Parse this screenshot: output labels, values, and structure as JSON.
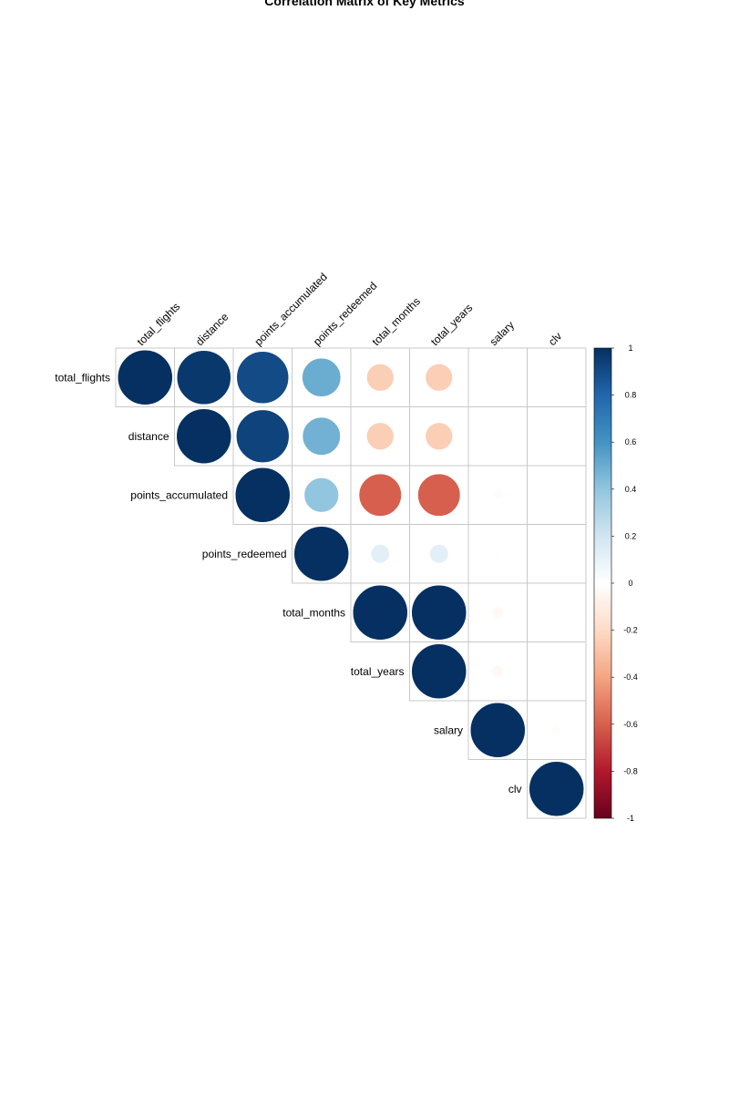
{
  "chart_data": {
    "type": "heatmap",
    "subtype": "correlation-matrix-upper-circle",
    "title": "Correlation Matrix of Key Metrics",
    "variables": [
      "total_flights",
      "distance",
      "points_accumulated",
      "points_redeemed",
      "total_months",
      "total_years",
      "salary",
      "clv"
    ],
    "matrix": [
      [
        1.0,
        0.97,
        0.9,
        0.5,
        -0.25,
        -0.25,
        0.0,
        0.0
      ],
      [
        0.97,
        1.0,
        0.93,
        0.48,
        -0.25,
        -0.25,
        0.0,
        0.0
      ],
      [
        0.9,
        0.93,
        1.0,
        0.4,
        -0.6,
        -0.6,
        -0.02,
        0.0
      ],
      [
        0.5,
        0.48,
        0.4,
        1.0,
        0.12,
        0.12,
        0.01,
        0.0
      ],
      [
        -0.25,
        -0.25,
        -0.6,
        0.12,
        1.0,
        1.0,
        -0.04,
        0.0
      ],
      [
        -0.25,
        -0.25,
        -0.6,
        0.12,
        1.0,
        1.0,
        -0.04,
        0.0
      ],
      [
        0.0,
        0.0,
        -0.02,
        0.01,
        -0.04,
        -0.04,
        1.0,
        -0.02
      ],
      [
        0.0,
        0.0,
        0.0,
        0.0,
        0.0,
        0.0,
        -0.02,
        1.0
      ]
    ],
    "colorbar": {
      "range": [
        -1,
        1
      ],
      "ticks": [
        "1",
        "0.8",
        "0.6",
        "0.4",
        "0.2",
        "0",
        "-0.2",
        "-0.4",
        "-0.6",
        "-0.8",
        "-1"
      ],
      "colors": [
        "#67001F",
        "#B2182B",
        "#D6604D",
        "#F4A582",
        "#FDDBC7",
        "#FFFFFF",
        "#D1E5F0",
        "#92C5DE",
        "#4393C3",
        "#2166AC",
        "#053061"
      ]
    },
    "grid": true,
    "legend_position": "right"
  }
}
